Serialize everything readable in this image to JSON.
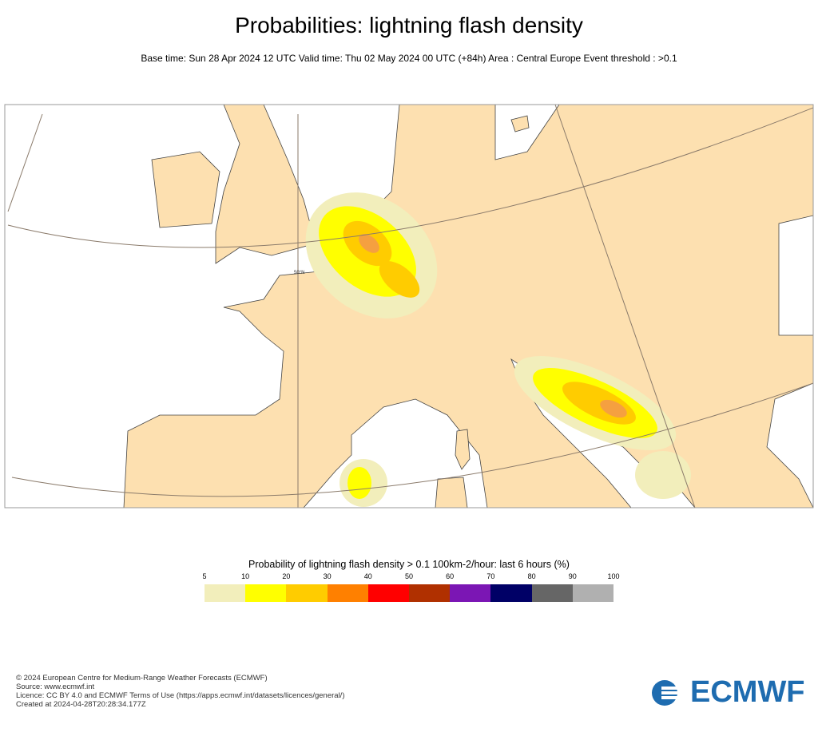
{
  "title": "Probabilities: lightning flash density",
  "subtitle": "Base time: Sun 28 Apr 2024 12 UTC Valid time: Thu 02 May 2024 00 UTC (+84h) Area : Central Europe Event threshold : >0.1",
  "map": {
    "lat_label": "50°N",
    "land_color": "#fde0b0",
    "sea_color": "#ffffff"
  },
  "legend": {
    "title": "Probability of lightning flash density > 0.1 100km-2/hour: last 6 hours (%)",
    "ticks": [
      "5",
      "10",
      "20",
      "30",
      "40",
      "50",
      "60",
      "70",
      "80",
      "90",
      "100"
    ],
    "colors": [
      "#f2eebb",
      "#ffff00",
      "#ffcc00",
      "#ff8000",
      "#ff0000",
      "#b03000",
      "#7b16b4",
      "#000066",
      "#666666",
      "#b0b0b0"
    ]
  },
  "footer": {
    "line1": "© 2024 European Centre for Medium-Range Weather Forecasts (ECMWF)",
    "line2": "Source: www.ecmwf.int",
    "line3": "Licence: CC BY 4.0 and ECMWF Terms of Use (https://apps.ecmwf.int/datasets/licences/general/)",
    "line4": "Created at 2024-04-28T20:28:34.177Z"
  },
  "logo": {
    "text": "ECMWF",
    "color": "#1e6cb0"
  }
}
